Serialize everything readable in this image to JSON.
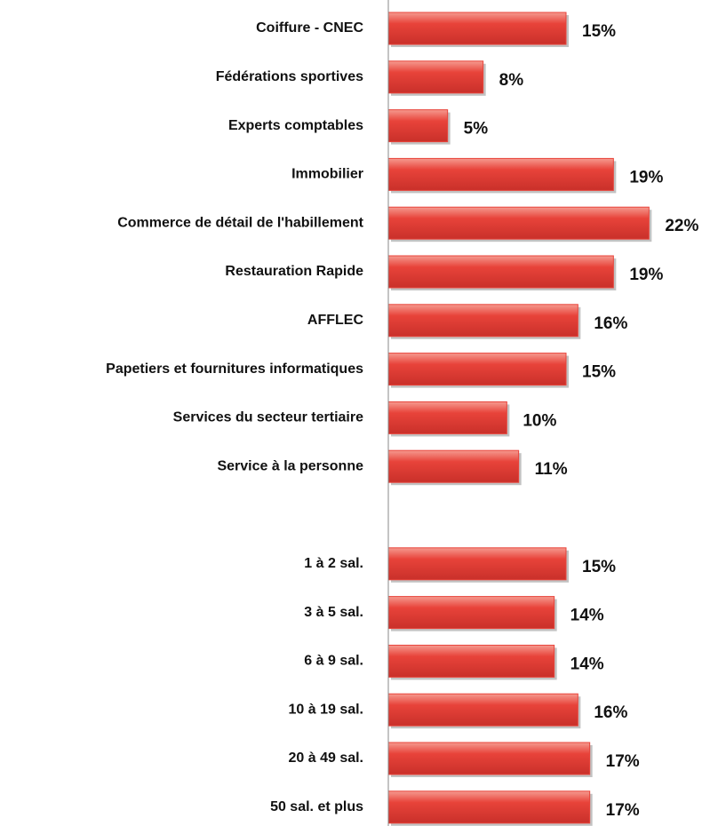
{
  "chart_data": {
    "type": "bar",
    "orientation": "horizontal",
    "color": "#e8433a",
    "categories": [
      "Coiffure - CNEC",
      "Fédérations sportives",
      "Experts comptables",
      "Immobilier",
      "Commerce de détail de l'habillement",
      "Restauration Rapide",
      "AFFLEC",
      "Papetiers et fournitures informatiques",
      "Services du secteur tertiaire",
      "Service à la personne",
      null,
      "1 à 2 sal.",
      "3 à 5 sal.",
      "6 à 9 sal.",
      "10 à 19 sal.",
      "20 à 49 sal.",
      "50 sal. et plus"
    ],
    "values": [
      15,
      8,
      5,
      19,
      22,
      19,
      16,
      15,
      10,
      11,
      null,
      15,
      14,
      14,
      16,
      17,
      17
    ],
    "value_labels": [
      "15%",
      "8%",
      "5%",
      "19%",
      "22%",
      "19%",
      "16%",
      "15%",
      "10%",
      "11%",
      null,
      "15%",
      "14%",
      "14%",
      "16%",
      "17%",
      "17%"
    ],
    "xlim": [
      0,
      27
    ]
  }
}
